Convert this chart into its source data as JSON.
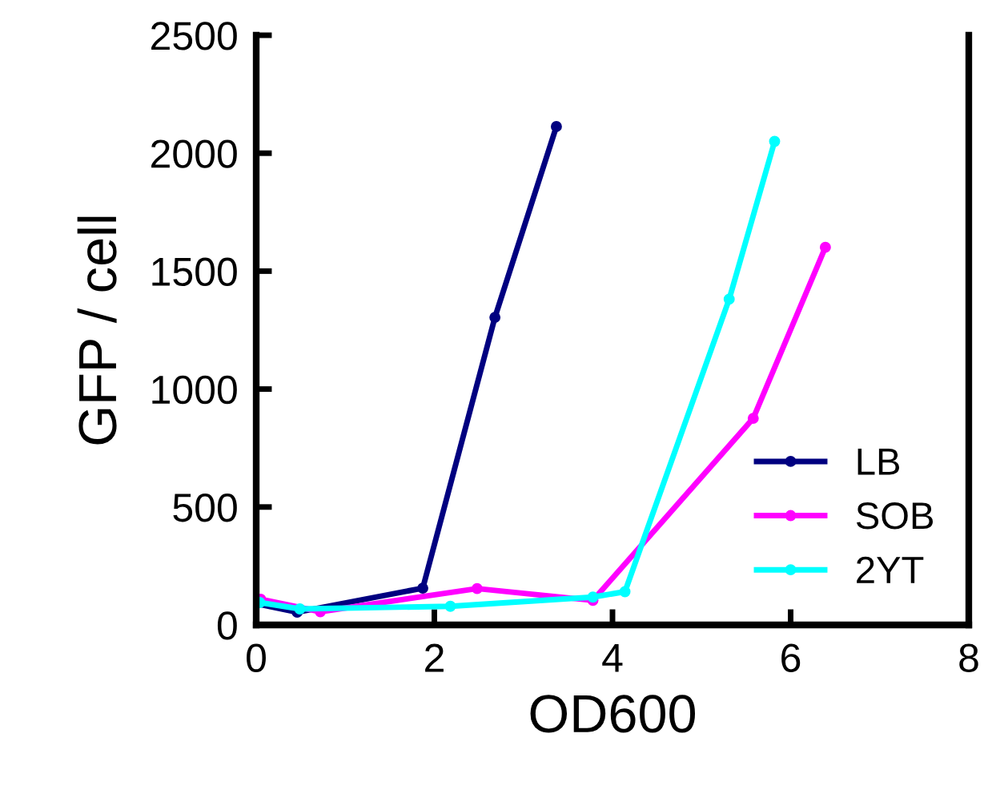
{
  "chart_data": {
    "type": "line",
    "xlabel": "OD600",
    "ylabel": "GFP / cell",
    "xlim": [
      0,
      8
    ],
    "xticks": [
      0,
      2,
      4,
      6,
      8
    ],
    "ylim": [
      0,
      2500
    ],
    "yticks": [
      0,
      500,
      1000,
      1500,
      2000,
      2500
    ],
    "grid": false,
    "legend": "bottom right",
    "marker": "circle",
    "line_style": "solid",
    "series": [
      {
        "name": "LB",
        "color": "#000080",
        "x": [
          0,
          0.46,
          1.87,
          2.68,
          3.37
        ],
        "values": [
          90,
          54,
          156,
          1304,
          2113
        ]
      },
      {
        "name": "SOB",
        "color": "#ff00ff",
        "x": [
          0.05,
          0.72,
          2.48,
          3.78,
          5.58,
          6.39
        ],
        "values": [
          109,
          56,
          154,
          104,
          876,
          1601
        ]
      },
      {
        "name": "2YT",
        "color": "#00ffff",
        "x": [
          0.04,
          0.49,
          2.18,
          3.78,
          4.14,
          5.31,
          5.82
        ],
        "values": [
          95,
          68,
          79,
          118,
          141,
          1381,
          2050
        ]
      }
    ]
  }
}
